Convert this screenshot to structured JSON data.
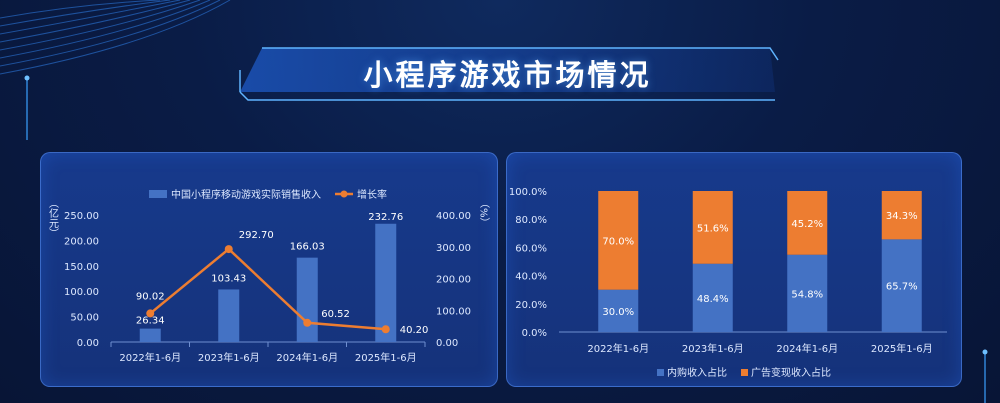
{
  "page": {
    "title": "小程序游戏市场情况"
  },
  "colors": {
    "bar_blue": "#4472c4",
    "line_orange": "#ed7d31",
    "stack_orange": "#ed7d31",
    "text_light": "#dde8ff"
  },
  "chart_data": [
    {
      "type": "bar",
      "title": "",
      "categories": [
        "2022年1-6月",
        "2023年1-6月",
        "2024年1-6月",
        "2025年1-6月"
      ],
      "series": [
        {
          "name": "中国小程序移动游戏实际销售收入",
          "kind": "bar",
          "axis": "left",
          "values": [
            26.34,
            103.43,
            166.03,
            232.76
          ]
        },
        {
          "name": "增长率",
          "kind": "line",
          "axis": "right",
          "values": [
            90.02,
            292.7,
            60.52,
            40.2
          ]
        }
      ],
      "ylabel_left": "（亿元）",
      "ylabel_right": "（%）",
      "ylim_left": [
        0,
        250
      ],
      "ylim_right": [
        0,
        400
      ],
      "yticks_left": [
        "0.00",
        "50.00",
        "100.00",
        "150.00",
        "200.00",
        "250.00"
      ],
      "yticks_right": [
        "0.00",
        "100.00",
        "200.00",
        "300.00",
        "400.00"
      ],
      "bar_labels": [
        "26.34",
        "103.43",
        "166.03",
        "232.76"
      ],
      "line_labels": [
        "90.02",
        "292.70",
        "60.52",
        "40.20"
      ],
      "legend_position": "top"
    },
    {
      "type": "bar",
      "stacked": true,
      "percent": true,
      "categories": [
        "2022年1-6月",
        "2023年1-6月",
        "2024年1-6月",
        "2025年1-6月"
      ],
      "series": [
        {
          "name": "内购收入占比",
          "values": [
            30.0,
            48.4,
            54.8,
            65.7
          ],
          "labels": [
            "30.0%",
            "48.4%",
            "54.8%",
            "65.7%"
          ]
        },
        {
          "name": "广告变现收入占比",
          "values": [
            70.0,
            51.6,
            45.2,
            34.3
          ],
          "labels": [
            "70.0%",
            "51.6%",
            "45.2%",
            "34.3%"
          ]
        }
      ],
      "ylim": [
        0,
        100
      ],
      "yticks": [
        "0.0%",
        "20.0%",
        "40.0%",
        "60.0%",
        "80.0%",
        "100.0%"
      ],
      "legend_position": "bottom"
    }
  ]
}
